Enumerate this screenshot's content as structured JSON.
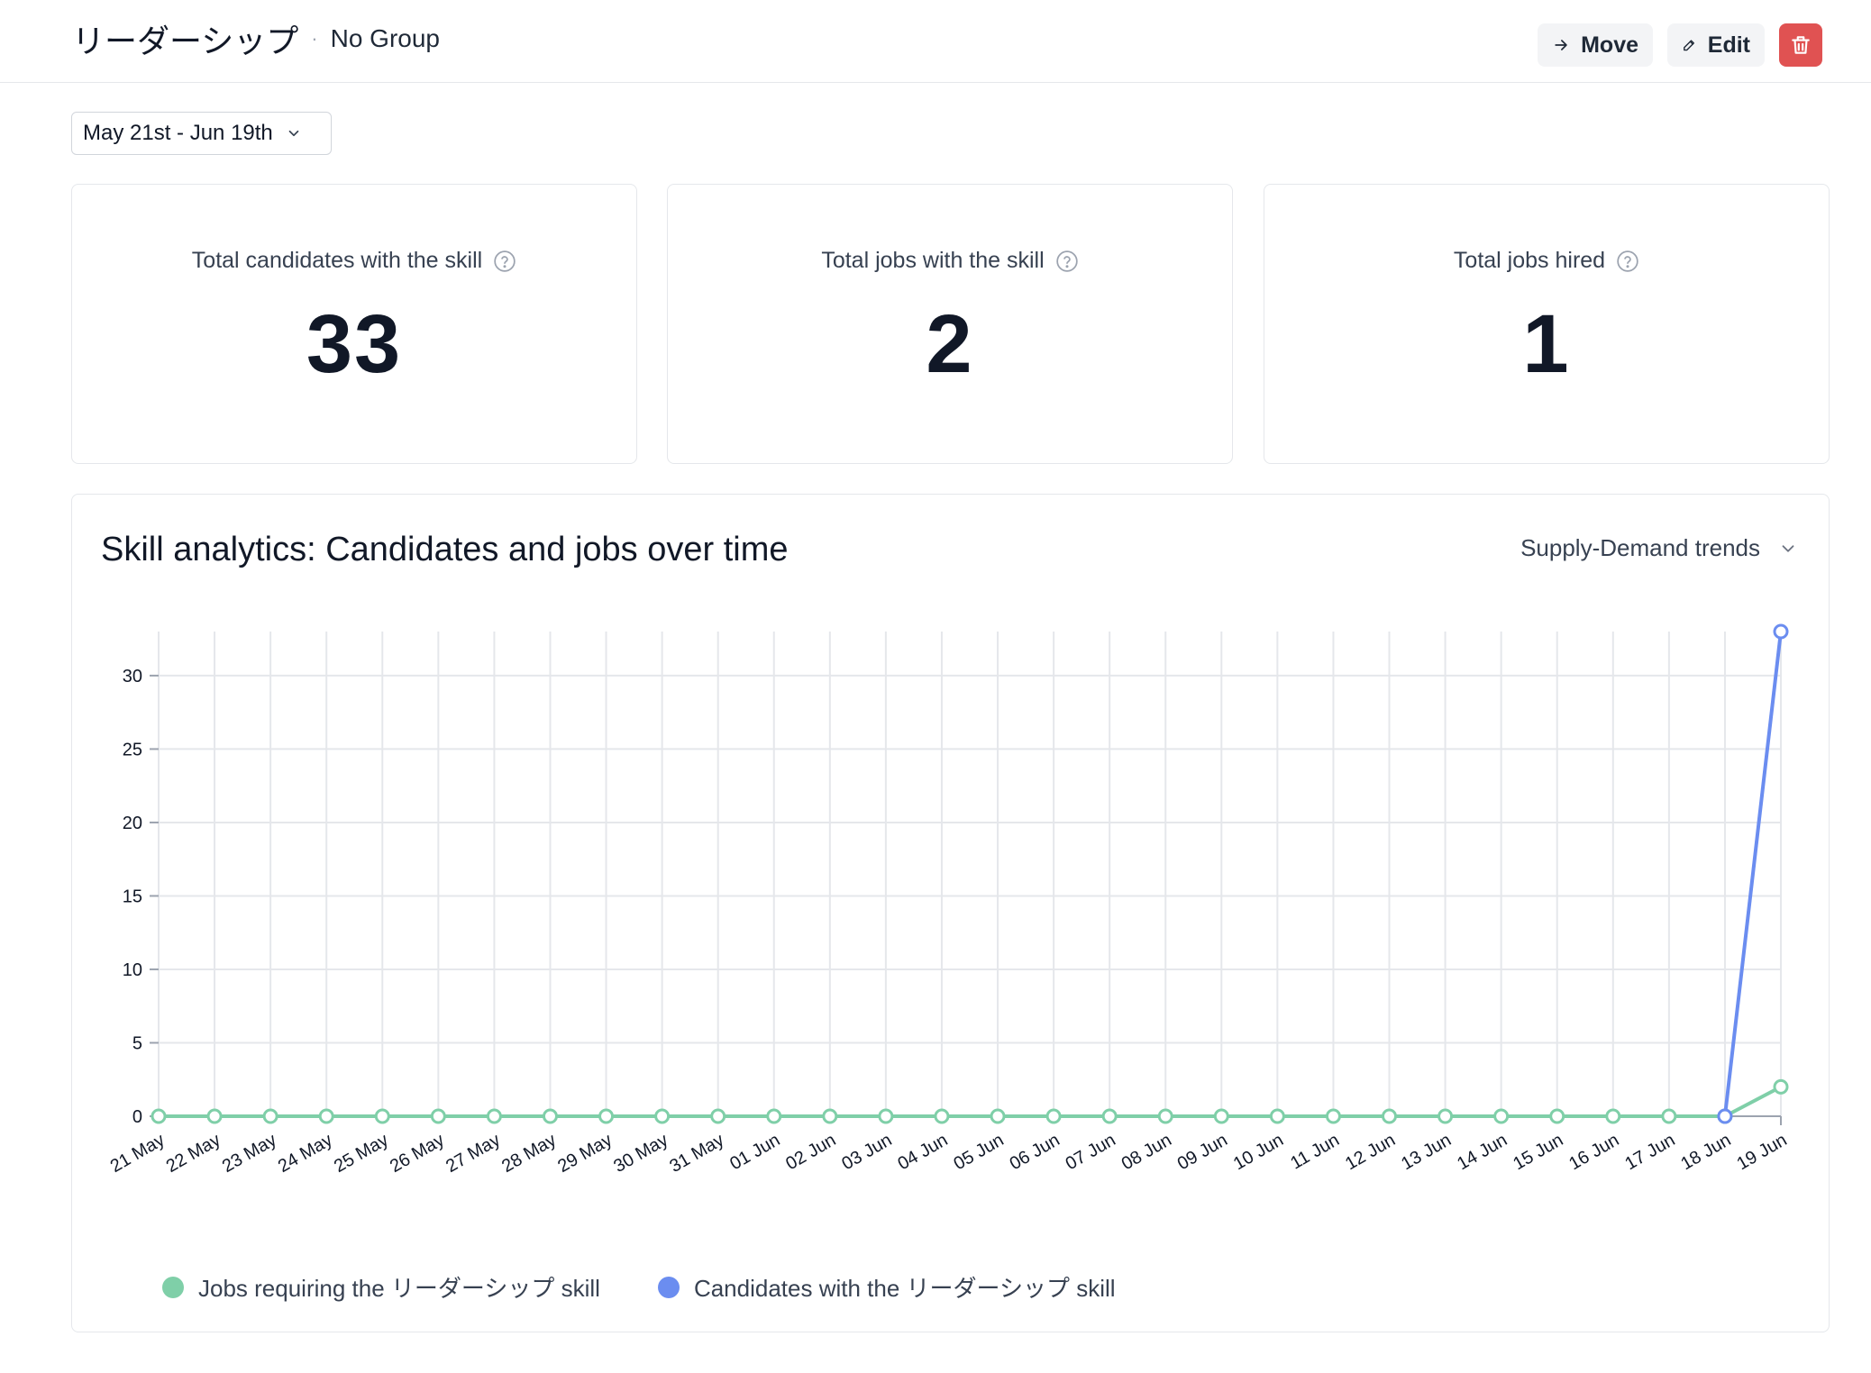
{
  "header": {
    "title": "リーダーシップ",
    "separator": "·",
    "group": "No Group",
    "move_label": "Move",
    "edit_label": "Edit"
  },
  "date_range": {
    "label": "May 21st - Jun 19th"
  },
  "stats": [
    {
      "label": "Total candidates with the skill",
      "value": "33"
    },
    {
      "label": "Total jobs with the skill",
      "value": "2"
    },
    {
      "label": "Total jobs hired",
      "value": "1"
    }
  ],
  "chart_section": {
    "title": "Skill analytics: Candidates and jobs over time",
    "view_select": "Supply-Demand trends"
  },
  "colors": {
    "jobs": "#7fcfa8",
    "candidates": "#6b8df0",
    "delete": "#e05252"
  },
  "chart_data": {
    "type": "line",
    "categories": [
      "21 May",
      "22 May",
      "23 May",
      "24 May",
      "25 May",
      "26 May",
      "27 May",
      "28 May",
      "29 May",
      "30 May",
      "31 May",
      "01 Jun",
      "02 Jun",
      "03 Jun",
      "04 Jun",
      "05 Jun",
      "06 Jun",
      "07 Jun",
      "08 Jun",
      "09 Jun",
      "10 Jun",
      "11 Jun",
      "12 Jun",
      "13 Jun",
      "14 Jun",
      "15 Jun",
      "16 Jun",
      "17 Jun",
      "18 Jun",
      "19 Jun"
    ],
    "yticks": [
      0,
      5,
      10,
      15,
      20,
      25,
      30
    ],
    "ylim": [
      0,
      33
    ],
    "grid": true,
    "legend_position": "bottom-left",
    "series": [
      {
        "name": "Jobs requiring the リーダーシップ skill",
        "color": "#7fcfa8",
        "values": [
          0,
          0,
          0,
          0,
          0,
          0,
          0,
          0,
          0,
          0,
          0,
          0,
          0,
          0,
          0,
          0,
          0,
          0,
          0,
          0,
          0,
          0,
          0,
          0,
          0,
          0,
          0,
          0,
          0,
          2
        ]
      },
      {
        "name": "Candidates with the リーダーシップ skill",
        "color": "#6b8df0",
        "values": [
          null,
          null,
          null,
          null,
          null,
          null,
          null,
          null,
          null,
          null,
          null,
          null,
          null,
          null,
          null,
          null,
          null,
          null,
          null,
          null,
          null,
          null,
          null,
          null,
          null,
          null,
          null,
          null,
          0,
          33
        ]
      }
    ]
  }
}
